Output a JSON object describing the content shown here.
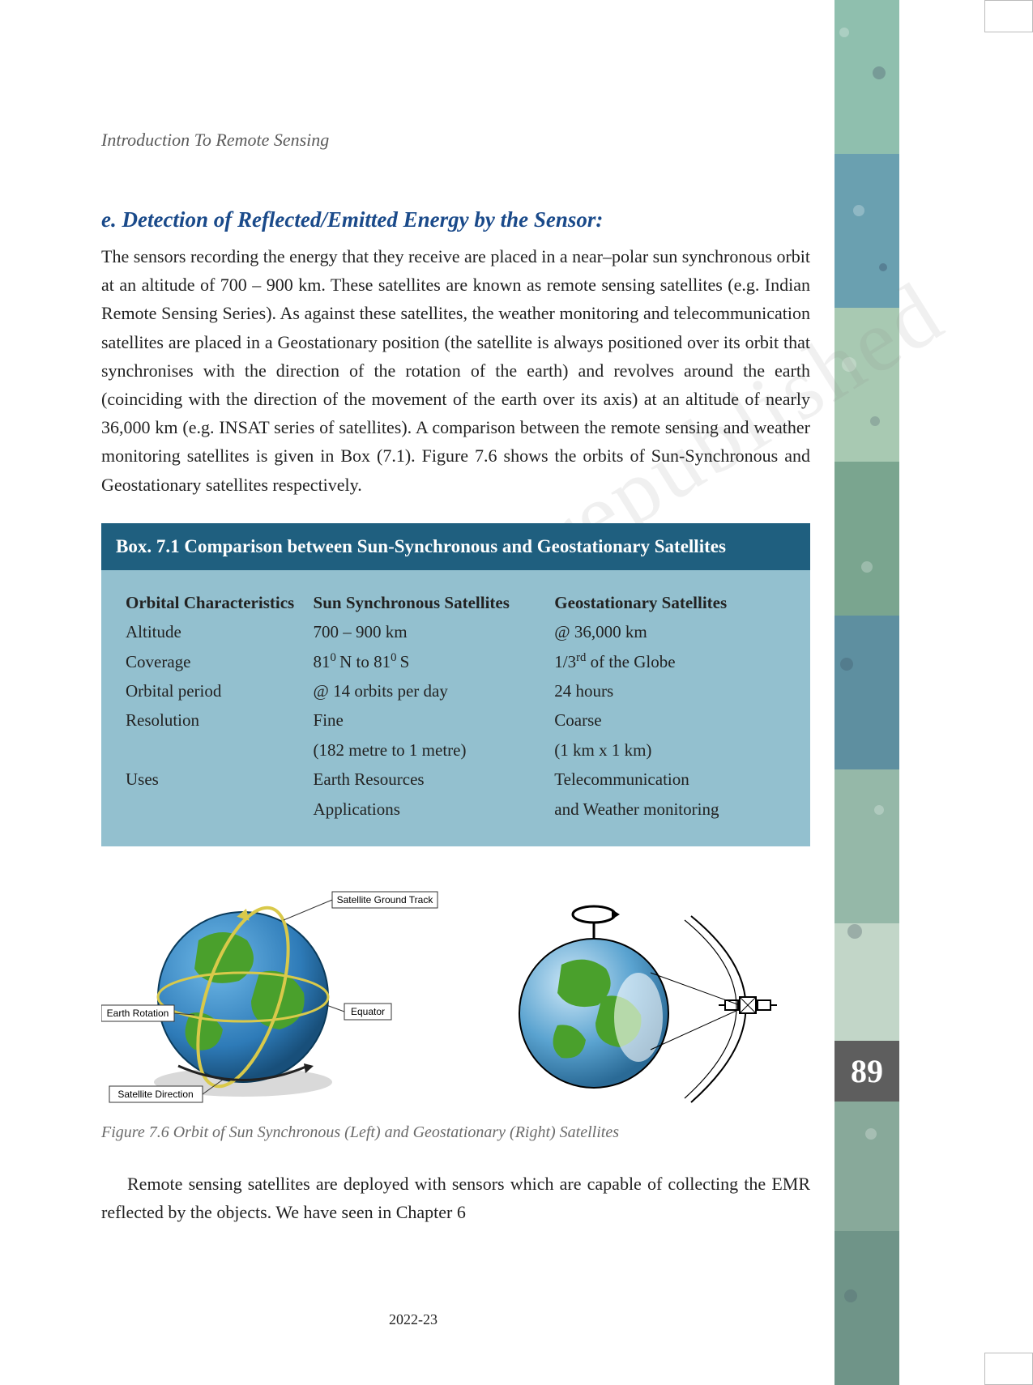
{
  "running_head": "Introduction To Remote Sensing",
  "section": {
    "heading": "e.  Detection  of   Reflected/Emitted  Energy  by  the  Sensor:",
    "para1": "The sensors recording the energy that they receive are placed in a near–polar sun synchronous orbit at an altitude of 700 – 900 km. These satellites are known as remote sensing satellites (e.g. Indian Remote Sensing Series). As against these satellites, the weather monitoring and telecommunication satellites are placed in a Geostationary position (the satellite is always positioned over its orbit that synchronises with the direction of the rotation of the earth) and revolves around the earth (coinciding with the direction of the movement of the earth over its axis) at an altitude of nearly 36,000 km (e.g. INSAT series of satellites). A comparison between the remote sensing and weather monitoring satellites is given in Box (7.1). Figure 7.6 shows the orbits of Sun-Synchronous and Geostationary satellites respectively."
  },
  "box": {
    "title": "Box. 7.1 Comparison between Sun-Synchronous and Geostationary Satellites",
    "title_bg": "#1f5f7f",
    "body_bg": "#93c0cf",
    "headers": {
      "c1": "Orbital Characteristics",
      "c2": "Sun Synchronous Satellites",
      "c3": "Geostationary Satellites"
    },
    "rows": [
      {
        "c1": "Altitude",
        "c2": "700 – 900 km",
        "c3": "@ 36,000 km"
      },
      {
        "c1": "Coverage",
        "c2_html": "81<sup>0</sup> N to 81<sup>0</sup> S",
        "c3_html": "1/3<sup>rd</sup> of the Globe"
      },
      {
        "c1": "Orbital period",
        "c2": "@ 14 orbits per day",
        "c3": "24 hours"
      },
      {
        "c1": "Resolution",
        "c2": "Fine",
        "c3": "Coarse"
      },
      {
        "c1": "",
        "c2": "(182 metre to 1 metre)",
        "c3": "(1 km x 1 km)"
      },
      {
        "c1": "Uses",
        "c2": "Earth Resources",
        "c3": "Telecommunication"
      },
      {
        "c1": "",
        "c2": "Applications",
        "c3": "and Weather monitoring"
      }
    ]
  },
  "figure": {
    "caption": "Figure 7.6 Orbit of Sun Synchronous (Left) and Geostationary (Right) Satellites",
    "left": {
      "ocean": "#2e7bb8",
      "land": "#4aa02c",
      "labels": {
        "ground_track": "Satellite Ground Track",
        "earth_rotation": "Earth Rotation",
        "equator": "Equator",
        "sat_direction": "Satellite Direction"
      }
    },
    "right": {
      "ocean": "#2e7bb8",
      "land": "#4aa02c"
    }
  },
  "closing_para": "Remote sensing satellites are deployed with sensors which are capable of collecting the EMR reflected by the objects. We have seen in Chapter 6",
  "footer_year": "2022-23",
  "page_number": "89",
  "side_strip": {
    "colors": [
      "#8fbfae",
      "#6aa0b0",
      "#a8c9b2",
      "#7aa58f",
      "#5e8fa0",
      "#95b8a8",
      "#c2d6c8",
      "#88a99a",
      "#6f9488"
    ]
  }
}
